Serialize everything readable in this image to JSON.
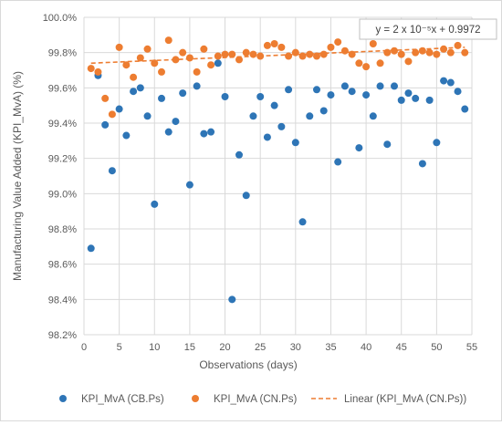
{
  "chart_data": {
    "type": "scatter",
    "xlabel": "Observations (days)",
    "ylabel": "Manufacturing Value Added (KPI_MvA) (%)",
    "xlim": [
      0,
      55
    ],
    "ylim": [
      98.2,
      100.0
    ],
    "x_ticks": [
      "0",
      "5",
      "10",
      "15",
      "20",
      "25",
      "30",
      "35",
      "40",
      "45",
      "50",
      "55"
    ],
    "y_ticks": [
      "98.2%",
      "98.4%",
      "98.6%",
      "98.8%",
      "99.0%",
      "99.2%",
      "99.4%",
      "99.6%",
      "99.8%",
      "100.0%"
    ],
    "grid": true,
    "legend_position": "bottom",
    "trendline_equation": "y = 2 x 10⁻⁵x + 0.9972",
    "series": [
      {
        "name": "KPI_MvA (CB.Ps)",
        "color": "#2e75b6",
        "x": [
          1,
          2,
          3,
          4,
          5,
          6,
          7,
          8,
          9,
          10,
          11,
          12,
          13,
          14,
          15,
          16,
          17,
          18,
          19,
          20,
          21,
          22,
          23,
          24,
          25,
          26,
          27,
          28,
          29,
          30,
          31,
          32,
          33,
          34,
          35,
          36,
          37,
          38,
          39,
          40,
          41,
          42,
          43,
          44,
          45,
          46,
          47,
          48,
          49,
          50,
          51,
          52,
          53,
          54
        ],
        "y": [
          98.69,
          99.67,
          99.39,
          99.13,
          99.48,
          99.33,
          99.58,
          99.6,
          99.44,
          98.94,
          99.54,
          99.35,
          99.41,
          99.57,
          99.05,
          99.61,
          99.34,
          99.35,
          99.74,
          99.55,
          98.4,
          99.22,
          98.99,
          99.44,
          99.55,
          99.32,
          99.5,
          99.38,
          99.59,
          99.29,
          98.84,
          99.44,
          99.59,
          99.47,
          99.56,
          99.18,
          99.61,
          99.58,
          99.26,
          99.56,
          99.44,
          99.61,
          99.28,
          99.61,
          99.53,
          99.57,
          99.54,
          99.17,
          99.53,
          99.29,
          99.64,
          99.63,
          99.58,
          99.48
        ]
      },
      {
        "name": "KPI_MvA (CN.Ps)",
        "color": "#ed7d31",
        "x": [
          1,
          2,
          3,
          4,
          5,
          6,
          7,
          8,
          9,
          10,
          11,
          12,
          13,
          14,
          15,
          16,
          17,
          18,
          19,
          20,
          21,
          22,
          23,
          24,
          25,
          26,
          27,
          28,
          29,
          30,
          31,
          32,
          33,
          34,
          35,
          36,
          37,
          38,
          39,
          40,
          41,
          42,
          43,
          44,
          45,
          46,
          47,
          48,
          49,
          50,
          51,
          52,
          53,
          54
        ],
        "y": [
          99.71,
          99.69,
          99.54,
          99.45,
          99.83,
          99.73,
          99.66,
          99.77,
          99.82,
          99.74,
          99.69,
          99.87,
          99.76,
          99.8,
          99.77,
          99.69,
          99.82,
          99.73,
          99.78,
          99.79,
          99.79,
          99.76,
          99.8,
          99.79,
          99.78,
          99.84,
          99.85,
          99.83,
          99.78,
          99.8,
          99.78,
          99.79,
          99.78,
          99.79,
          99.83,
          99.86,
          99.81,
          99.79,
          99.74,
          99.72,
          99.85,
          99.74,
          99.8,
          99.81,
          99.79,
          99.75,
          99.8,
          99.81,
          99.8,
          99.79,
          99.82,
          99.8,
          99.84,
          99.8
        ]
      },
      {
        "name": "Linear (KPI_MvA (CN.Ps))",
        "color": "#ed7d31",
        "line": "dashed",
        "x": [
          1,
          54
        ],
        "y": [
          99.74,
          99.83
        ]
      }
    ]
  }
}
